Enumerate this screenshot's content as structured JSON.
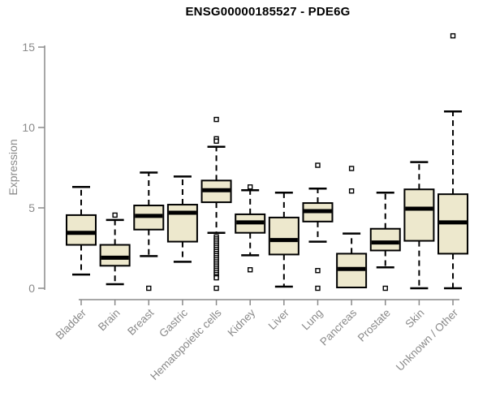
{
  "chart_data": {
    "type": "boxplot",
    "title": "ENSG00000185527 - PDE6G",
    "xlabel": "",
    "ylabel": "Expression",
    "ylim": [
      0,
      15
    ],
    "yticks": [
      0,
      5,
      10,
      15
    ],
    "grid": false,
    "legend": "none",
    "categories": [
      "Bladder",
      "Brain",
      "Breast",
      "Gastric",
      "Hematopoietic cells",
      "Kidney",
      "Liver",
      "Lung",
      "Pancreas",
      "Prostate",
      "Skin",
      "Unknown / Other"
    ],
    "series": [
      {
        "category": "Bladder",
        "min": 0.85,
        "q1": 2.7,
        "median": 3.45,
        "q3": 4.55,
        "max": 6.3,
        "outliers": []
      },
      {
        "category": "Brain",
        "min": 0.25,
        "q1": 1.4,
        "median": 1.9,
        "q3": 2.7,
        "max": 4.25,
        "outliers": [
          4.55
        ]
      },
      {
        "category": "Breast",
        "min": 2.0,
        "q1": 3.65,
        "median": 4.5,
        "q3": 5.15,
        "max": 7.2,
        "outliers": [
          0
        ]
      },
      {
        "category": "Gastric",
        "min": 1.65,
        "q1": 2.9,
        "median": 4.7,
        "q3": 5.2,
        "max": 6.95,
        "outliers": []
      },
      {
        "category": "Hematopoietic cells",
        "min": 3.45,
        "q1": 5.35,
        "median": 6.1,
        "q3": 6.7,
        "max": 8.8,
        "outliers": [
          10.5,
          9.3,
          9.15,
          3.2,
          3.07,
          2.94,
          2.81,
          2.68,
          2.55,
          2.42,
          2.29,
          2.16,
          2.03,
          1.9,
          1.77,
          1.64,
          1.51,
          1.38,
          1.25,
          1.12,
          0.99,
          0.86,
          0.73,
          0.65,
          0
        ]
      },
      {
        "category": "Kidney",
        "min": 2.05,
        "q1": 3.45,
        "median": 4.1,
        "q3": 4.6,
        "max": 6.1,
        "outliers": [
          6.3,
          1.15
        ]
      },
      {
        "category": "Liver",
        "min": 0.1,
        "q1": 2.1,
        "median": 3.0,
        "q3": 4.4,
        "max": 5.95,
        "outliers": []
      },
      {
        "category": "Lung",
        "min": 2.9,
        "q1": 4.15,
        "median": 4.8,
        "q3": 5.3,
        "max": 6.2,
        "outliers": [
          7.65,
          1.1,
          0
        ]
      },
      {
        "category": "Pancreas",
        "min": 0.0,
        "q1": 0.05,
        "median": 1.2,
        "q3": 2.15,
        "max": 3.4,
        "outliers": [
          7.45,
          6.05
        ]
      },
      {
        "category": "Prostate",
        "min": 1.3,
        "q1": 2.35,
        "median": 2.85,
        "q3": 3.7,
        "max": 5.95,
        "outliers": [
          0
        ]
      },
      {
        "category": "Skin",
        "min": 0.0,
        "q1": 2.95,
        "median": 4.95,
        "q3": 6.15,
        "max": 7.85,
        "outliers": []
      },
      {
        "category": "Unknown / Other",
        "min": 0.0,
        "q1": 2.15,
        "median": 4.1,
        "q3": 5.85,
        "max": 11.0,
        "outliers": [
          15.7
        ]
      }
    ],
    "colors": {
      "box_fill": "#EDE8CD",
      "box_border": "#000000",
      "median": "#000000",
      "whisker": "#000000",
      "outlier_stroke": "#000000",
      "outlier_fill": "#ffffff",
      "axis": "#8a8a8a",
      "axis_text": "#8a8a8a",
      "title_text": "#000000",
      "background": "#ffffff"
    }
  }
}
